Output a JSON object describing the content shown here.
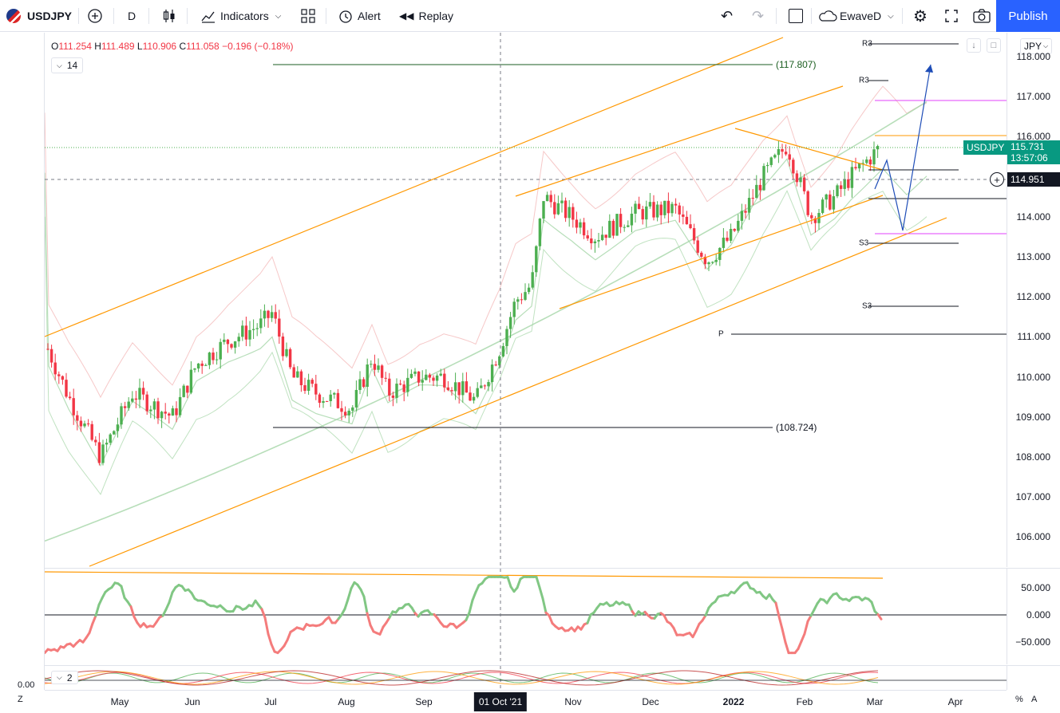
{
  "toolbar": {
    "symbol": "USDJPY",
    "interval": "D",
    "indicators_label": "Indicators",
    "alert_label": "Alert",
    "replay_label": "Replay",
    "layout_name": "EwaveD",
    "publish_label": "Publish"
  },
  "legend": {
    "o_key": "O",
    "o_val": "111.254",
    "h_key": "H",
    "h_val": "111.489",
    "l_key": "L",
    "l_val": "110.906",
    "c_key": "C",
    "c_val": "111.058",
    "change": "−0.196 (−0.18%)",
    "length_value": "14"
  },
  "price_axis": {
    "currency": "JPY",
    "ticks": [
      "118.000",
      "117.000",
      "116.000",
      "115.000",
      "114.000",
      "113.000",
      "112.000",
      "111.000",
      "110.000",
      "109.000",
      "108.000",
      "107.000",
      "106.000"
    ],
    "last_symbol": "USDJPY",
    "last_price": "115.731",
    "countdown": "13:57:06",
    "cursor_price": "114.951"
  },
  "levels": {
    "top": "(117.807)",
    "bottom": "(108.724)",
    "pivots": [
      "R3",
      "R3",
      "S3",
      "S3",
      "P"
    ]
  },
  "rsi_axis": {
    "ticks": [
      "50.000",
      "0.000",
      "−50.000"
    ]
  },
  "lower_pane": {
    "axis_value": "0.00",
    "length_value": "2"
  },
  "time_axis": {
    "labels": [
      "May",
      "Jun",
      "Jul",
      "Aug",
      "Sep",
      "Nov",
      "Dec",
      "2022",
      "Feb",
      "Mar",
      "Apr"
    ],
    "cursor_label": "01 Oct '21",
    "left_btn": "Z",
    "right_btn": "A",
    "pct_btn": "%"
  },
  "colors": {
    "up": "#4caf50",
    "down": "#f23645",
    "channel": "#ff9800",
    "accent": "#2962ff",
    "ma_green": "#a5d6a7",
    "band_red": "#ef9a9a"
  }
}
